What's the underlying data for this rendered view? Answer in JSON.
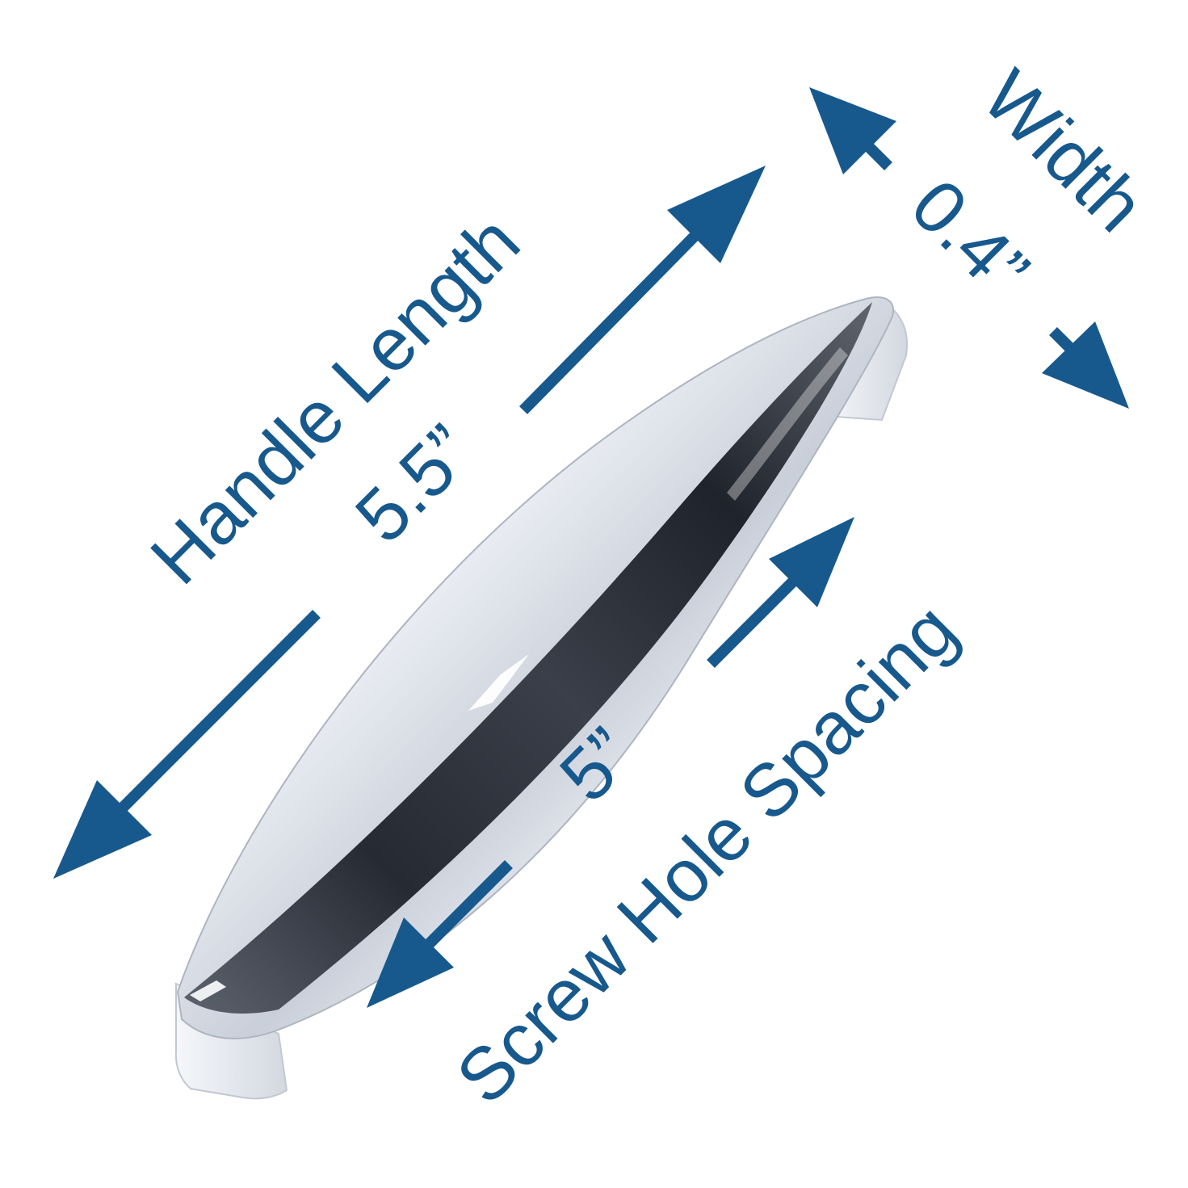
{
  "labels": {
    "handle_length_title": "Handle Length",
    "handle_length_value": "5.5”",
    "width_title": "Width",
    "width_value": "0.4”",
    "screw_spacing_value": "5”",
    "screw_spacing_title": "Screw Hole Spacing"
  },
  "colors": {
    "dimension": "#17598d",
    "background": "#ffffff",
    "chrome_light": "#f4f6fa",
    "chrome_mid": "#b9c0cc",
    "chrome_dark": "#262a33"
  },
  "product": {
    "image": "chrome cabinet handle pull"
  }
}
